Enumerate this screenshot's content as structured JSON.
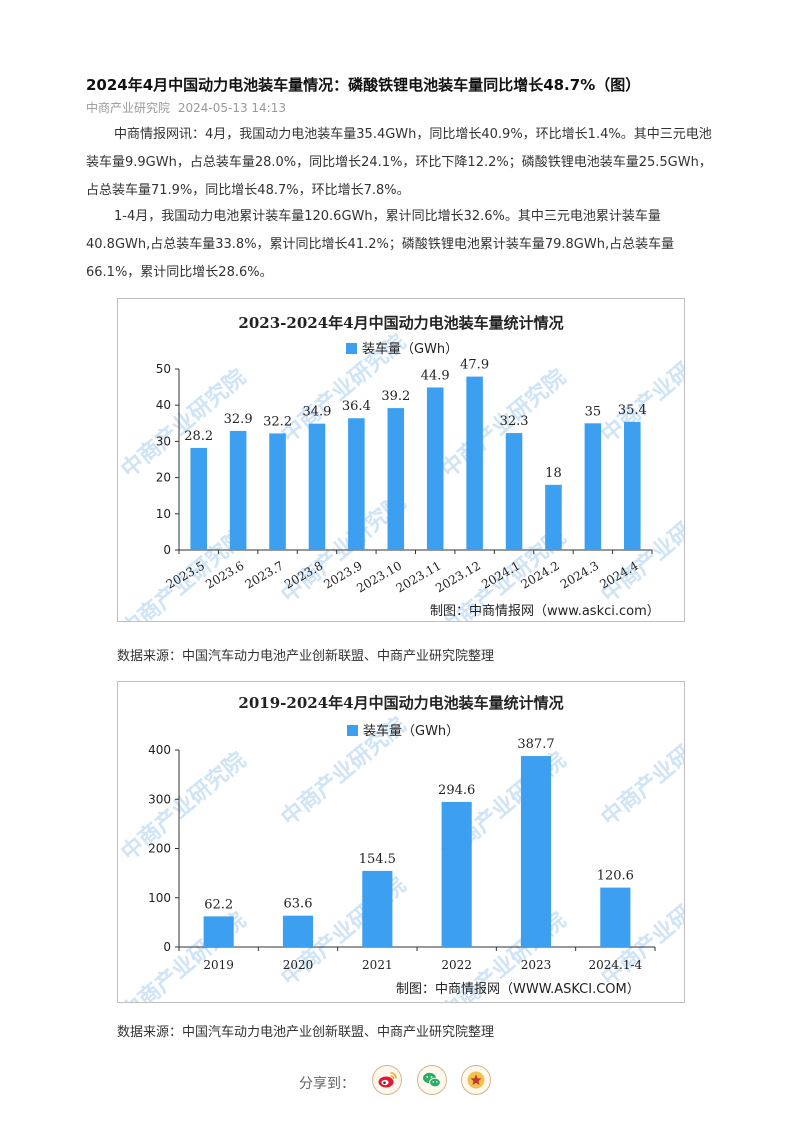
{
  "article": {
    "title": "2024年4月中国动力电池装车量情况：磷酸铁锂电池装车量同比增长48.7%（图）",
    "source": "中商产业研究院",
    "date": "2024-05-13 14:13",
    "paragraphs": [
      "中商情报网讯：4月，我国动力电池装车量35.4GWh，同比增长40.9%，环比增长1.4%。其中三元电池装车量9.9GWh，占总装车量28.0%，同比增长24.1%，环比下降12.2%；磷酸铁锂电池装车量25.5GWh，占总装车量71.9%，同比增长48.7%，环比增长7.8%。",
      "1-4月，我国动力电池累计装车量120.6GWh，累计同比增长32.6%。其中三元电池累计装车量40.8GWh,占总装车量33.8%，累计同比增长41.2%；磷酸铁锂电池累计装车量79.8GWh,占总装车量66.1%，累计同比增长28.6%。"
    ]
  },
  "watermark_text": "中商产业研究院",
  "colors": {
    "bar": "#3d9ff0",
    "axis": "#333333",
    "watermark": "#cfe4f7"
  },
  "chart_data": [
    {
      "type": "bar",
      "title": "2023-2024年4月中国动力电池装车量统计情况",
      "legend": "装车量（GWh）",
      "legend_position": "top-center",
      "categories": [
        "2023.5",
        "2023.6",
        "2023.7",
        "2023.8",
        "2023.9",
        "2023.10",
        "2023.11",
        "2023.12",
        "2024.1",
        "2024.2",
        "2024.3",
        "2024.4"
      ],
      "values": [
        28.2,
        32.9,
        32.2,
        34.9,
        36.4,
        39.2,
        44.9,
        47.9,
        32.3,
        18,
        35,
        35.4
      ],
      "labels": [
        "28.2",
        "32.9",
        "32.2",
        "34.9",
        "36.4",
        "39.2",
        "44.9",
        "47.9",
        "32.3",
        "18",
        "35",
        "35.4"
      ],
      "ylim": [
        0,
        50
      ],
      "yticks": [
        "0",
        "10",
        "20",
        "30",
        "40",
        "50"
      ],
      "grid": false,
      "credit": "制图：中商情报网（www.askci.com）"
    },
    {
      "type": "bar",
      "title": "2019-2024年4月中国动力电池装车量统计情况",
      "legend": "装车量（GWh）",
      "legend_position": "top-center",
      "categories": [
        "2019",
        "2020",
        "2021",
        "2022",
        "2023",
        "2024.1-4"
      ],
      "values": [
        62.2,
        63.6,
        154.5,
        294.6,
        387.7,
        120.6
      ],
      "labels": [
        "62.2",
        "63.6",
        "154.5",
        "294.6",
        "387.7",
        "120.6"
      ],
      "ylim": [
        0,
        400
      ],
      "yticks": [
        "0",
        "100",
        "200",
        "300",
        "400"
      ],
      "grid": false,
      "credit": "制图：中商情报网（WWW.ASKCI.COM）"
    }
  ],
  "sources": [
    "数据来源：中国汽车动力电池产业创新联盟、中商产业研究院整理",
    "数据来源：中国汽车动力电池产业创新联盟、中商产业研究院整理"
  ],
  "share": {
    "label": "分享到：",
    "buttons": [
      {
        "name": "weibo",
        "icon": "weibo-icon",
        "color": "#e6162d"
      },
      {
        "name": "wechat",
        "icon": "wechat-icon",
        "color": "#2aae67"
      },
      {
        "name": "favorite",
        "icon": "star-icon",
        "color": "#d08a1f"
      }
    ]
  }
}
